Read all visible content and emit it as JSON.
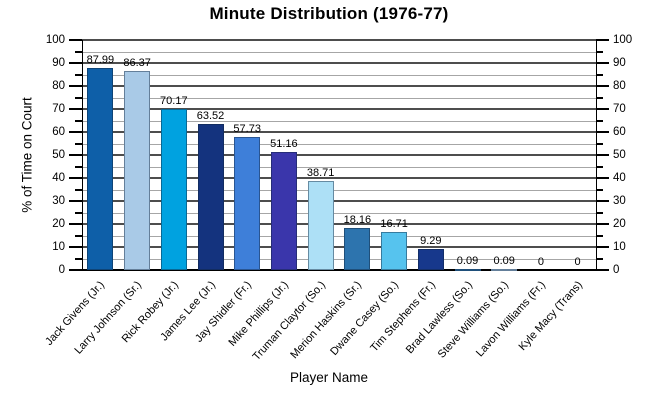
{
  "figure": {
    "title": "Minute Distribution (1976-77)"
  },
  "chart_data": {
    "type": "bar",
    "title": "Minute Distribution (1976-77)",
    "xlabel": "Player Name",
    "ylabel": "% of Time on Court",
    "ylim": [
      0,
      100
    ],
    "y_major_ticks": [
      0,
      10,
      20,
      30,
      40,
      50,
      60,
      70,
      80,
      90,
      100
    ],
    "y_minor_tick_step": 5,
    "y_axis_labeled_on_both_sides": true,
    "grid": {
      "horizontal_major": true,
      "horizontal_minor": true,
      "vertical": false
    },
    "legend": "none",
    "value_labels_shown": true,
    "categories": [
      "Jack Givens (Jr.)",
      "Larry Johnson (Sr.)",
      "Rick Robey (Jr.)",
      "James Lee (Jr.)",
      "Jay Shidler (Fr.)",
      "Mike Phillips (Jr.)",
      "Truman Claytor (So.)",
      "Merion Haskins (Sr.)",
      "Dwane Casey (So.)",
      "Tim Stephens (Fr.)",
      "Brad Lawless (So.)",
      "Steve Williams (So.)",
      "Lavon Williams (Fr.)",
      "Kyle Macy (Trans)"
    ],
    "values": [
      87.99,
      86.37,
      70.17,
      63.52,
      57.73,
      51.16,
      38.71,
      18.16,
      16.71,
      9.29,
      0.09,
      0.09,
      0,
      0
    ],
    "value_labels": [
      "87.99",
      "86.37",
      "70.17",
      "63.52",
      "57.73",
      "51.16",
      "38.71",
      "18.16",
      "16.71",
      "9.29",
      "0.09",
      "0.09",
      "0",
      "0"
    ],
    "bar_colors": [
      "#0E5FA8",
      "#A9CAE7",
      "#00A2E0",
      "#14337E",
      "#3E7FD9",
      "#3A36AB",
      "#ADE0F6",
      "#2D74AE",
      "#56C3EE",
      "#17388C",
      "#2D74AE",
      "#A9CAE7",
      "#0E5FA8",
      "#00A2E0"
    ],
    "colors": {
      "grid_major": "#4D4D4D",
      "grid_minor": "#A6A6A6",
      "axis": "#000000",
      "text": "#000000",
      "background": "#FFFFFF"
    }
  }
}
